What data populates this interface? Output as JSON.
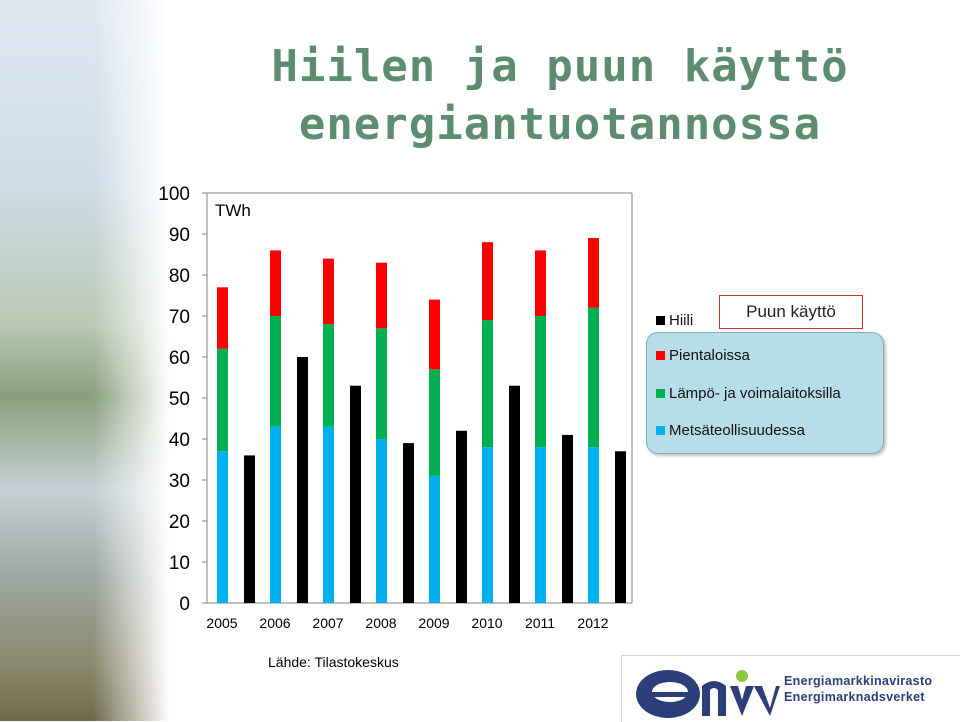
{
  "title": {
    "line1": "Hiilen ja puun käyttö",
    "line2": "energiantuotannossa"
  },
  "source": "Lähde: Tilastokeskus",
  "logo": {
    "line1": "Energiamarkkinavirasto",
    "line2": "Energimarknadsverket"
  },
  "legend": {
    "group_label": "Puun käyttö",
    "hiili": "Hiili",
    "pientaloissa": "Pientaloissa",
    "lampo": "Lämpö- ja voimalaitoksilla",
    "metsa": "Metsäteollisuudessa"
  },
  "colors": {
    "hiili": "#000000",
    "pientaloissa": "#ff0000",
    "lampo": "#00b050",
    "metsa": "#00b0f0",
    "title": "#5b8d6e"
  },
  "chart_data": {
    "type": "bar",
    "ylabel": "TWh",
    "ylim": [
      0,
      100
    ],
    "yticks": [
      0,
      10,
      20,
      30,
      40,
      50,
      60,
      70,
      80,
      90,
      100
    ],
    "categories": [
      "2005",
      "2006",
      "2007",
      "2008",
      "2009",
      "2010",
      "2011",
      "2012"
    ],
    "grid": false,
    "legend_position": "right",
    "wood_stacked": {
      "stack_order": [
        "Metsäteollisuudessa",
        "Lämpö- ja voimalaitoksilla",
        "Pientaloissa"
      ],
      "series": [
        {
          "name": "Metsäteollisuudessa",
          "values": [
            37,
            43,
            43,
            40,
            31,
            38,
            38,
            38
          ]
        },
        {
          "name": "Lämpö- ja voimalaitoksilla",
          "values": [
            25,
            27,
            25,
            27,
            26,
            31,
            32,
            34
          ]
        },
        {
          "name": "Pientaloissa",
          "values": [
            15,
            16,
            16,
            16,
            17,
            19,
            16,
            17
          ]
        }
      ]
    },
    "coal": {
      "name": "Hiili",
      "values": [
        36,
        60,
        53,
        39,
        42,
        53,
        41,
        37
      ]
    }
  }
}
